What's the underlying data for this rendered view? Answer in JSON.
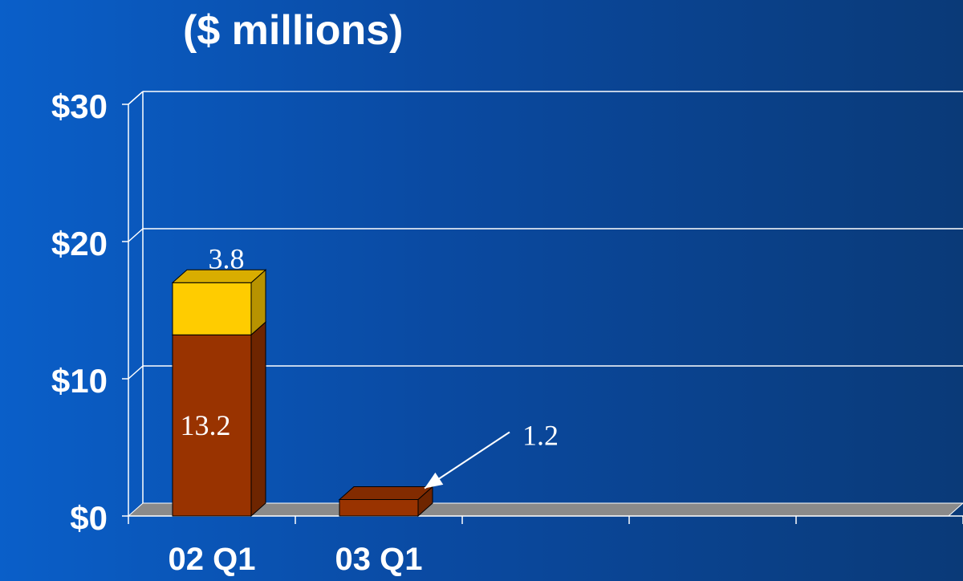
{
  "subtitle": "($ millions)",
  "colors": {
    "background_left": "#0a5fc9",
    "background_right": "#0a3a78",
    "series_bottom": "#993300",
    "series_top": "#ffcc00",
    "floor": "#8a8a8a",
    "text": "#ffffff"
  },
  "chart_data": {
    "type": "bar",
    "stacked": true,
    "three_d": true,
    "title": "($ millions)",
    "categories": [
      "02 Q1",
      "03 Q1",
      "",
      "",
      ""
    ],
    "series": [
      {
        "values": [
          13.2,
          1.2,
          null,
          null,
          null
        ],
        "color": "#993300"
      },
      {
        "values": [
          3.8,
          null,
          null,
          null,
          null
        ],
        "color": "#ffcc00"
      }
    ],
    "data_labels": [
      {
        "text": "13.2",
        "series": 0,
        "category": 0
      },
      {
        "text": "3.8",
        "series": 1,
        "category": 0
      },
      {
        "text": "1.2",
        "series": 0,
        "category": 1,
        "callout_arrow": true
      }
    ],
    "y_ticks": [
      "$0",
      "$10",
      "$20",
      "$30"
    ],
    "ylim": [
      0,
      30
    ],
    "grid": true,
    "legend": "none"
  }
}
